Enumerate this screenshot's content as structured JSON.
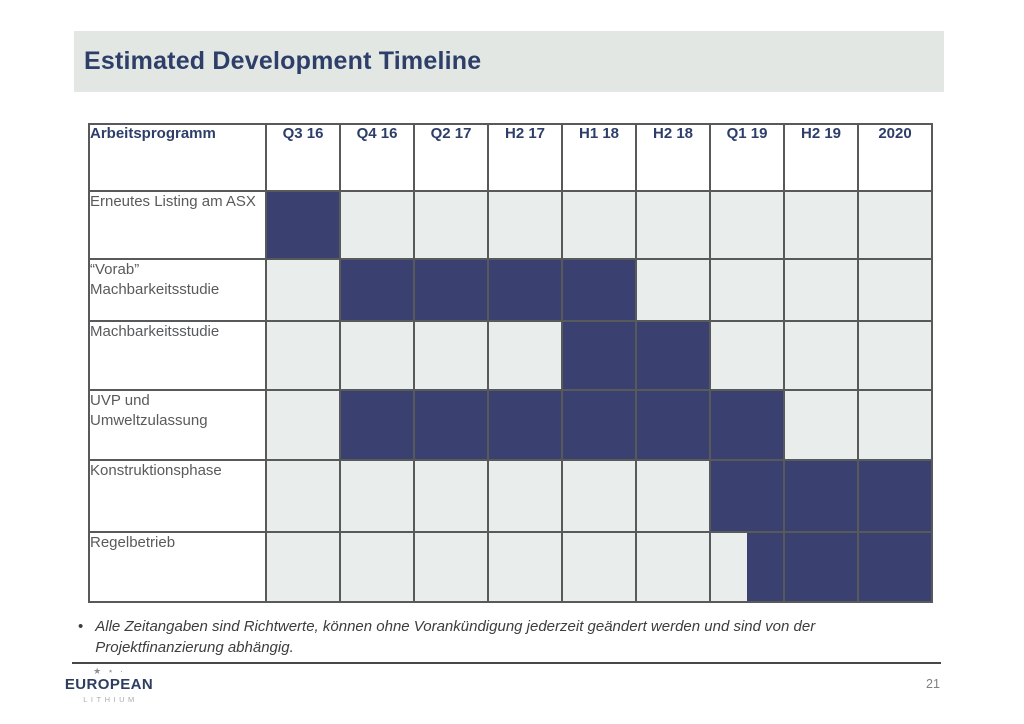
{
  "slide": {
    "title": "Estimated Development Timeline",
    "page_number": "21"
  },
  "chart_data": {
    "type": "table",
    "subtype": "gantt-timeline",
    "title": "Estimated Development Timeline",
    "columns": [
      "Arbeitsprogramm",
      "Q3 16",
      "Q4 16",
      "Q2 17",
      "H2 17",
      "H1 18",
      "H2 18",
      "Q1 19",
      "H2 19",
      "2020"
    ],
    "rows": [
      {
        "label_lines": [
          "Erneutes Listing am ASX"
        ],
        "cells": [
          1,
          0,
          0,
          0,
          0,
          0,
          0,
          0,
          0
        ]
      },
      {
        "label_lines": [
          "“Vorab”",
          "Machbarkeitsstudie"
        ],
        "cells": [
          0,
          1,
          1,
          1,
          1,
          0,
          0,
          0,
          0
        ]
      },
      {
        "label_lines": [
          "Machbarkeitsstudie"
        ],
        "cells": [
          0,
          0,
          0,
          0,
          1,
          1,
          0,
          0,
          0
        ]
      },
      {
        "label_lines": [
          "UVP und",
          "Umweltzulassung"
        ],
        "cells": [
          0,
          1,
          1,
          1,
          1,
          1,
          1,
          0,
          0
        ]
      },
      {
        "label_lines": [
          "Konstruktionsphase"
        ],
        "cells": [
          0,
          0,
          0,
          0,
          0,
          0,
          1,
          1,
          1
        ]
      },
      {
        "label_lines": [
          "Regelbetrieb"
        ],
        "cells": [
          0,
          0,
          0,
          0,
          0,
          0,
          0.5,
          1,
          1
        ]
      }
    ]
  },
  "colors": {
    "bar_fill": "#3a4170",
    "cell_empty": "#e9edeb",
    "grid": "#58595b",
    "title_text": "#2d3e69",
    "title_bar_bg": "#e3e7e4",
    "label_text": "#595a5c"
  },
  "footnote": {
    "bullet": "•",
    "lines": [
      "Alle Zeitangaben sind Richtwerte, können ohne Vorankündigung jederzeit geändert werden und sind von der",
      "Projektfinanzierung abhängig."
    ]
  },
  "logo": {
    "stars": "★ ⋆ ·",
    "name": "EUROPEAN",
    "subtitle": "LITHIUM"
  }
}
